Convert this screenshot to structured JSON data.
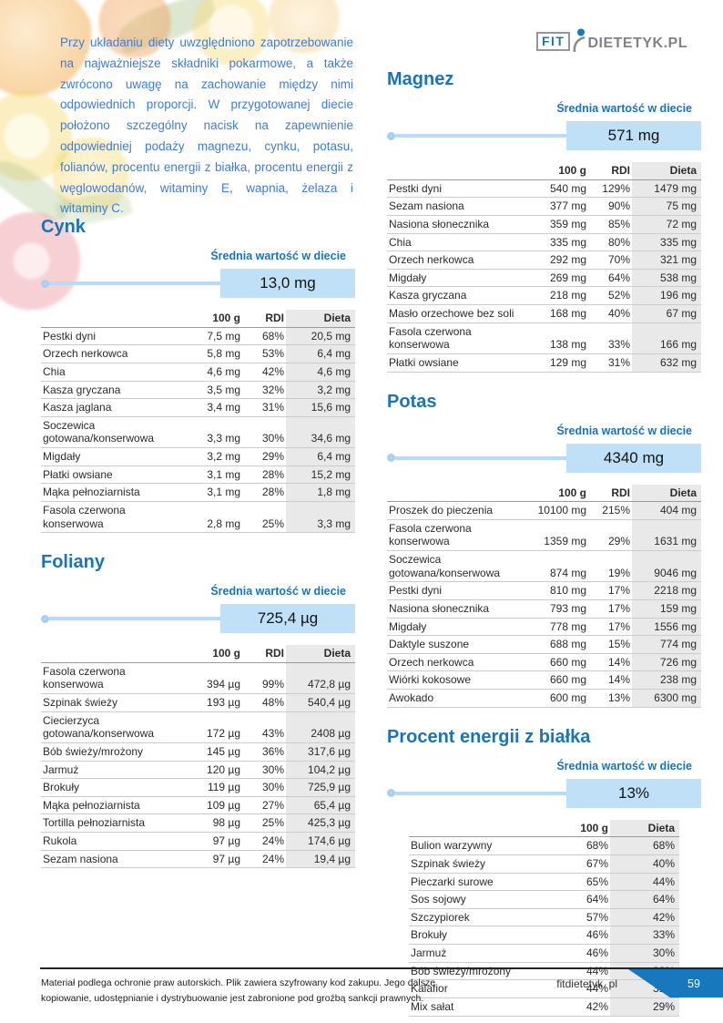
{
  "page": {
    "intro": "Przy układaniu diety uwzględniono zapotrzebowanie na najważniejsze składniki pokarmowe, a także zwrócono uwagę na zachowanie między nimi odpowiednich proporcji. W przygotowanej diecie położono szczególny nacisk na zapewnienie odpowiedniej podaży magnezu, cynku, potasu, folianów, procentu energii z białka, procentu energii z węglowodanów, witaminy E, wapnia, żelaza i witaminy C.",
    "logo": {
      "fit": "FIT",
      "rest": "DIETETYK.PL"
    },
    "avg_label": "Średnia wartość w diecie",
    "colors": {
      "accent_blue": "#1b74b8",
      "intro_blue": "#3f7ed6",
      "bar_fill": "#bfe0f7",
      "track_blue": "#b9dbf6",
      "dieta_column_bg": "#e9e9e9",
      "ribbon_blue": "#1778be"
    },
    "footer": {
      "line1": "Materiał podlega ochronie praw autorskich. Plik zawiera szyfrowany kod zakupu. Jego dalsze",
      "line2": "kopiowanie, udostępnianie i dystrybuowanie jest zabronione pod groźbą sankcji prawnych.",
      "site": "fitdietetyk. pl",
      "page_number": "59"
    }
  },
  "sections": [
    {
      "title": "Cynk",
      "avg": "13,0 mg",
      "columns": [
        "100 g",
        "RDI",
        "Dieta"
      ],
      "rows": [
        [
          "Pestki dyni",
          "7,5 mg",
          "68%",
          "20,5 mg"
        ],
        [
          "Orzech nerkowca",
          "5,8 mg",
          "53%",
          "6,4 mg"
        ],
        [
          "Chia",
          "4,6 mg",
          "42%",
          "4,6 mg"
        ],
        [
          "Kasza gryczana",
          "3,5 mg",
          "32%",
          "3,2 mg"
        ],
        [
          "Kasza jaglana",
          "3,4 mg",
          "31%",
          "15,6 mg"
        ],
        [
          "Soczewica gotowana/konserwowa",
          "3,3 mg",
          "30%",
          "34,6 mg"
        ],
        [
          "Migdały",
          "3,2 mg",
          "29%",
          "6,4 mg"
        ],
        [
          "Płatki owsiane",
          "3,1 mg",
          "28%",
          "15,2 mg"
        ],
        [
          "Mąka pełnoziarnista",
          "3,1 mg",
          "28%",
          "1,8 mg"
        ],
        [
          "Fasola czerwona konserwowa",
          "2,8 mg",
          "25%",
          "3,3 mg"
        ]
      ]
    },
    {
      "title": "Foliany",
      "avg": "725,4 µg",
      "columns": [
        "100 g",
        "RDI",
        "Dieta"
      ],
      "rows": [
        [
          "Fasola czerwona konserwowa",
          "394 µg",
          "99%",
          "472,8 µg"
        ],
        [
          "Szpinak świeży",
          "193 µg",
          "48%",
          "540,4 µg"
        ],
        [
          "Ciecierzyca gotowana/konserwowa",
          "172 µg",
          "43%",
          "2408 µg"
        ],
        [
          "Bób świeży/mrożony",
          "145 µg",
          "36%",
          "317,6 µg"
        ],
        [
          "Jarmuż",
          "120 µg",
          "30%",
          "104,2 µg"
        ],
        [
          "Brokuły",
          "119 µg",
          "30%",
          "725,9 µg"
        ],
        [
          "Mąka pełnoziarnista",
          "109 µg",
          "27%",
          "65,4 µg"
        ],
        [
          "Tortilla pełnoziarnista",
          "98 µg",
          "25%",
          "425,3 µg"
        ],
        [
          "Rukola",
          "97 µg",
          "24%",
          "174,6 µg"
        ],
        [
          "Sezam nasiona",
          "97 µg",
          "24%",
          "19,4 µg"
        ]
      ]
    },
    {
      "title": "Magnez",
      "avg": "571 mg",
      "columns": [
        "100 g",
        "RDI",
        "Dieta"
      ],
      "rows": [
        [
          "Pestki dyni",
          "540 mg",
          "129%",
          "1479 mg"
        ],
        [
          "Sezam nasiona",
          "377 mg",
          "90%",
          "75 mg"
        ],
        [
          "Nasiona słonecznika",
          "359 mg",
          "85%",
          "72 mg"
        ],
        [
          "Chia",
          "335 mg",
          "80%",
          "335 mg"
        ],
        [
          "Orzech nerkowca",
          "292 mg",
          "70%",
          "321 mg"
        ],
        [
          "Migdały",
          "269 mg",
          "64%",
          "538 mg"
        ],
        [
          "Kasza gryczana",
          "218 mg",
          "52%",
          "196 mg"
        ],
        [
          "Masło orzechowe bez soli",
          "168 mg",
          "40%",
          "67 mg"
        ],
        [
          "Fasola czerwona konserwowa",
          "138 mg",
          "33%",
          "166 mg"
        ],
        [
          "Płatki owsiane",
          "129 mg",
          "31%",
          "632 mg"
        ]
      ]
    },
    {
      "title": "Potas",
      "avg": "4340 mg",
      "columns": [
        "100 g",
        "RDI",
        "Dieta"
      ],
      "rows": [
        [
          "Proszek do pieczenia",
          "10100 mg",
          "215%",
          "404 mg"
        ],
        [
          "Fasola czerwona konserwowa",
          "1359 mg",
          "29%",
          "1631 mg"
        ],
        [
          "Soczewica gotowana/konserwowa",
          "874 mg",
          "19%",
          "9046 mg"
        ],
        [
          "Pestki dyni",
          "810 mg",
          "17%",
          "2218 mg"
        ],
        [
          "Nasiona słonecznika",
          "793 mg",
          "17%",
          "159 mg"
        ],
        [
          "Migdały",
          "778 mg",
          "17%",
          "1556 mg"
        ],
        [
          "Daktyle suszone",
          "688 mg",
          "15%",
          "774 mg"
        ],
        [
          "Orzech nerkowca",
          "660 mg",
          "14%",
          "726 mg"
        ],
        [
          "Wiórki kokosowe",
          "660 mg",
          "14%",
          "238 mg"
        ],
        [
          "Awokado",
          "600 mg",
          "13%",
          "6300 mg"
        ]
      ]
    },
    {
      "title": "Procent energii z białka",
      "avg": "13%",
      "columns": [
        "100 g",
        "Dieta"
      ],
      "rows": [
        [
          "Bulion warzywny",
          "68%",
          "68%"
        ],
        [
          "Szpinak świeży",
          "67%",
          "40%"
        ],
        [
          "Pieczarki surowe",
          "65%",
          "44%"
        ],
        [
          "Sos sojowy",
          "64%",
          "64%"
        ],
        [
          "Szczypiorek",
          "57%",
          "42%"
        ],
        [
          "Brokuły",
          "46%",
          "33%"
        ],
        [
          "Jarmuż",
          "46%",
          "30%"
        ],
        [
          "Bób świeży/mrożony",
          "44%",
          "32%"
        ],
        [
          "Kalafior",
          "44%",
          "31%"
        ],
        [
          "Mix sałat",
          "42%",
          "29%"
        ]
      ]
    }
  ]
}
